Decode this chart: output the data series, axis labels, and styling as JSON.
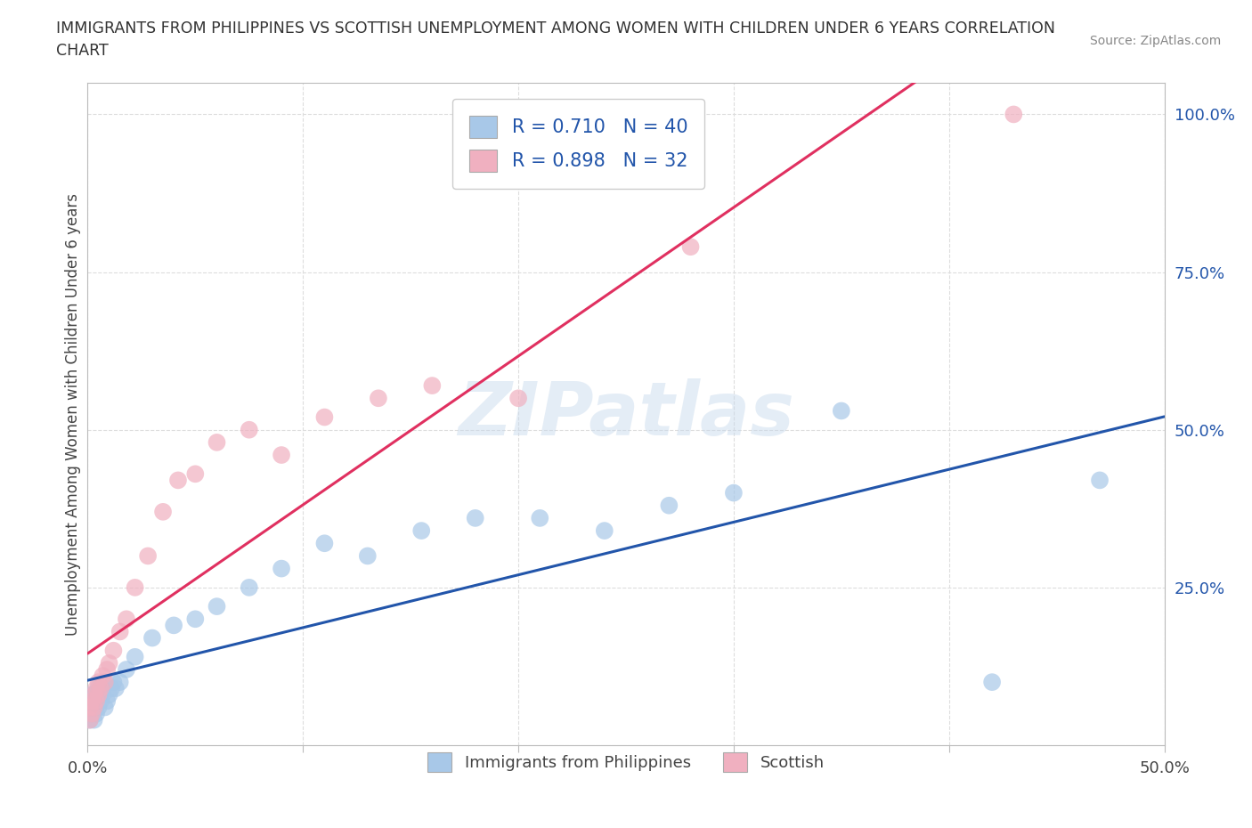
{
  "title_line1": "IMMIGRANTS FROM PHILIPPINES VS SCOTTISH UNEMPLOYMENT AMONG WOMEN WITH CHILDREN UNDER 6 YEARS CORRELATION",
  "title_line2": "CHART",
  "source": "Source: ZipAtlas.com",
  "ylabel": "Unemployment Among Women with Children Under 6 years",
  "xlim": [
    0,
    0.5
  ],
  "ylim": [
    0,
    1.05
  ],
  "xtick_vals": [
    0.0,
    0.1,
    0.2,
    0.3,
    0.4,
    0.5
  ],
  "xtick_labels": [
    "0.0%",
    "",
    "",
    "",
    "",
    "50.0%"
  ],
  "ytick_vals": [
    0.0,
    0.25,
    0.5,
    0.75,
    1.0
  ],
  "ytick_labels_right": [
    "",
    "25.0%",
    "50.0%",
    "75.0%",
    "100.0%"
  ],
  "blue_color": "#A8C8E8",
  "pink_color": "#F0B0C0",
  "blue_line_color": "#2255AA",
  "pink_line_color": "#E03060",
  "legend_R1": "R = 0.710",
  "legend_N1": "N = 40",
  "legend_R2": "R = 0.898",
  "legend_N2": "N = 32",
  "watermark": "ZIPatlas",
  "blue_scatter_x": [
    0.001,
    0.001,
    0.002,
    0.002,
    0.002,
    0.003,
    0.003,
    0.003,
    0.004,
    0.004,
    0.005,
    0.005,
    0.006,
    0.007,
    0.008,
    0.009,
    0.01,
    0.011,
    0.012,
    0.013,
    0.015,
    0.018,
    0.022,
    0.03,
    0.04,
    0.05,
    0.06,
    0.075,
    0.09,
    0.11,
    0.13,
    0.155,
    0.18,
    0.21,
    0.24,
    0.27,
    0.3,
    0.35,
    0.42,
    0.47
  ],
  "blue_scatter_y": [
    0.04,
    0.06,
    0.05,
    0.07,
    0.08,
    0.04,
    0.06,
    0.08,
    0.05,
    0.07,
    0.06,
    0.09,
    0.07,
    0.08,
    0.06,
    0.07,
    0.08,
    0.09,
    0.1,
    0.09,
    0.1,
    0.12,
    0.14,
    0.17,
    0.19,
    0.2,
    0.22,
    0.25,
    0.28,
    0.32,
    0.3,
    0.34,
    0.36,
    0.36,
    0.34,
    0.38,
    0.4,
    0.53,
    0.1,
    0.42
  ],
  "pink_scatter_x": [
    0.001,
    0.001,
    0.002,
    0.002,
    0.003,
    0.003,
    0.004,
    0.004,
    0.005,
    0.005,
    0.006,
    0.007,
    0.008,
    0.009,
    0.01,
    0.012,
    0.015,
    0.018,
    0.022,
    0.028,
    0.035,
    0.042,
    0.05,
    0.06,
    0.075,
    0.09,
    0.11,
    0.135,
    0.16,
    0.2,
    0.28,
    0.43
  ],
  "pink_scatter_y": [
    0.04,
    0.06,
    0.05,
    0.07,
    0.06,
    0.08,
    0.07,
    0.09,
    0.08,
    0.1,
    0.09,
    0.11,
    0.1,
    0.12,
    0.13,
    0.15,
    0.18,
    0.2,
    0.25,
    0.3,
    0.37,
    0.42,
    0.43,
    0.48,
    0.5,
    0.46,
    0.52,
    0.55,
    0.57,
    0.55,
    0.79,
    1.0
  ],
  "grid_color": "#DDDDDD",
  "background_color": "#FFFFFF",
  "right_tick_color": "#2255AA"
}
